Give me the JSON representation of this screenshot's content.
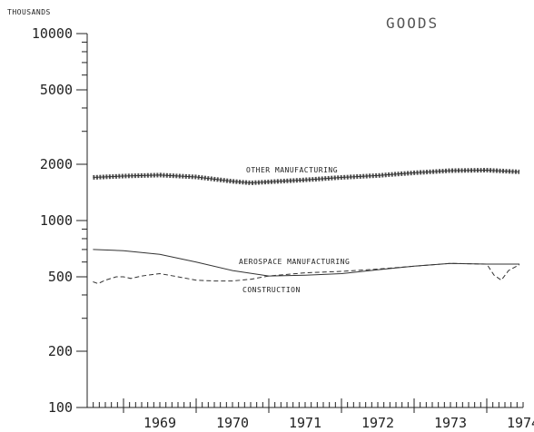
{
  "chart_data": {
    "type": "line",
    "title": "GOODS",
    "ylabel": "THOUSANDS",
    "xlabel": "",
    "yscale": "log",
    "ylim": [
      100,
      10000
    ],
    "xlim": [
      1968.5,
      1974.5
    ],
    "yticks": [
      "100",
      "200",
      "500",
      "1000",
      "2000",
      "5000",
      "10000"
    ],
    "xticks": [
      "1969",
      "1970",
      "1971",
      "1972",
      "1973",
      "1974"
    ],
    "grid": false,
    "series": [
      {
        "name": "OTHER MANUFACTURING",
        "style": "crosshatched",
        "color": "#333333",
        "x": [
          1968.58,
          1969.0,
          1969.5,
          1970.0,
          1970.5,
          1970.75,
          1971.0,
          1971.5,
          1972.0,
          1972.5,
          1973.0,
          1973.5,
          1974.0,
          1974.45
        ],
        "y": [
          1700,
          1730,
          1750,
          1710,
          1620,
          1590,
          1610,
          1650,
          1700,
          1740,
          1800,
          1850,
          1860,
          1820
        ]
      },
      {
        "name": "AEROSPACE MANUFACTURING",
        "style": "solid",
        "color": "#333333",
        "x": [
          1968.58,
          1969.0,
          1969.5,
          1970.0,
          1970.5,
          1971.0,
          1971.5,
          1972.0,
          1972.5,
          1973.0,
          1973.5,
          1974.0,
          1974.45
        ],
        "y": [
          700,
          690,
          660,
          600,
          540,
          505,
          510,
          520,
          545,
          570,
          590,
          585,
          585
        ]
      },
      {
        "name": "CONSTRUCTION",
        "style": "dashed",
        "color": "#333333",
        "x": [
          1968.58,
          1968.65,
          1968.75,
          1968.9,
          1969.0,
          1969.1,
          1969.25,
          1969.5,
          1969.75,
          1970.0,
          1970.25,
          1970.5,
          1970.75,
          1971.0,
          1971.5,
          1972.0,
          1972.5,
          1973.0,
          1973.5,
          1974.0,
          1974.1,
          1974.2,
          1974.3,
          1974.45
        ],
        "y": [
          470,
          460,
          480,
          500,
          500,
          490,
          505,
          520,
          500,
          480,
          475,
          475,
          485,
          505,
          525,
          535,
          550,
          570,
          590,
          585,
          510,
          480,
          540,
          580
        ]
      }
    ]
  }
}
